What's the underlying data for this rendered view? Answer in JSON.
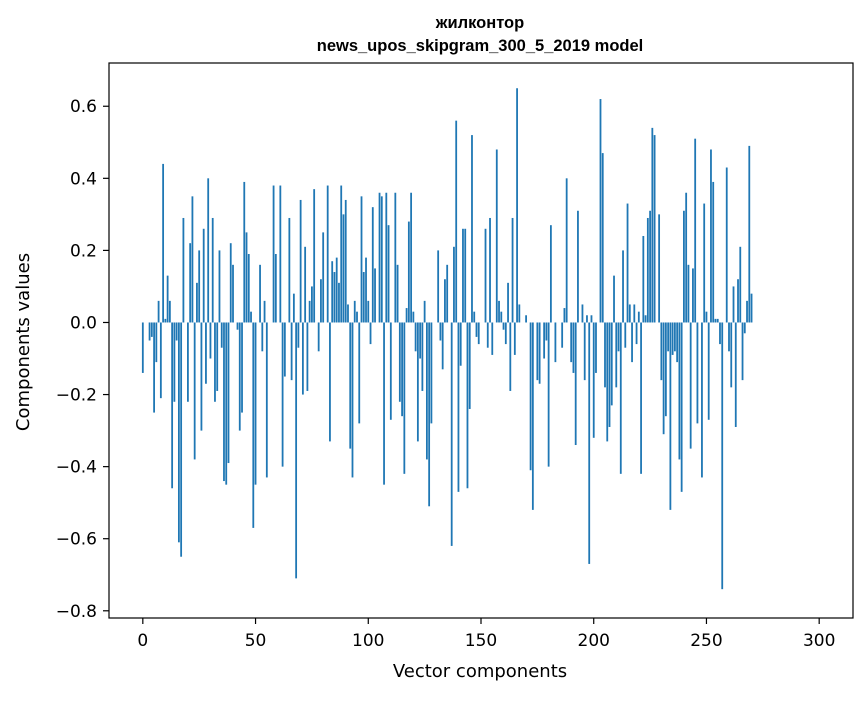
{
  "chart_data": {
    "type": "bar",
    "title_line1": "жилконтор",
    "title_line2": "news_upos_skipgram_300_5_2019 model",
    "xlabel": "Vector components",
    "ylabel": "Components values",
    "xlim": [
      -15,
      315
    ],
    "ylim": [
      -0.82,
      0.72
    ],
    "xticks": [
      0,
      50,
      100,
      150,
      200,
      250,
      300
    ],
    "xtick_labels": [
      "0",
      "50",
      "100",
      "150",
      "200",
      "250",
      "300"
    ],
    "yticks": [
      -0.8,
      -0.6,
      -0.4,
      -0.2,
      0.0,
      0.2,
      0.4,
      0.6
    ],
    "ytick_labels": [
      "−0.8",
      "−0.6",
      "−0.4",
      "−0.2",
      "0.0",
      "0.2",
      "0.4",
      "0.6"
    ],
    "bar_color": "#1f77b4",
    "values": [
      -0.14,
      0.0,
      0.0,
      -0.05,
      -0.04,
      -0.25,
      -0.11,
      0.06,
      -0.21,
      0.44,
      0.01,
      0.13,
      0.06,
      -0.46,
      -0.22,
      -0.05,
      -0.61,
      -0.65,
      0.29,
      0.0,
      -0.22,
      0.22,
      0.35,
      -0.38,
      0.11,
      0.2,
      -0.3,
      0.26,
      -0.17,
      0.4,
      -0.1,
      0.29,
      -0.22,
      -0.19,
      0.2,
      -0.07,
      -0.44,
      -0.45,
      -0.39,
      0.22,
      0.16,
      0.0,
      -0.02,
      -0.3,
      -0.25,
      0.39,
      0.25,
      0.19,
      0.03,
      -0.57,
      -0.45,
      0.0,
      0.16,
      -0.08,
      0.06,
      -0.43,
      0.0,
      0.0,
      0.38,
      0.19,
      0.0,
      0.38,
      -0.4,
      -0.15,
      0.0,
      0.29,
      -0.16,
      0.08,
      -0.71,
      -0.07,
      0.34,
      -0.2,
      0.21,
      -0.19,
      0.06,
      0.1,
      0.37,
      0.0,
      -0.08,
      0.12,
      0.25,
      0.0,
      0.38,
      -0.33,
      0.17,
      0.14,
      0.18,
      0.11,
      0.38,
      0.3,
      0.34,
      0.05,
      -0.35,
      -0.43,
      0.06,
      0.03,
      -0.28,
      0.35,
      0.14,
      0.18,
      0.06,
      -0.06,
      0.32,
      0.15,
      0.0,
      0.36,
      0.35,
      -0.45,
      0.36,
      0.27,
      -0.27,
      0.0,
      0.36,
      0.16,
      -0.22,
      -0.26,
      -0.42,
      0.04,
      0.28,
      0.36,
      0.03,
      -0.08,
      -0.33,
      -0.1,
      -0.19,
      0.06,
      -0.38,
      -0.51,
      -0.28,
      0.0,
      0.0,
      0.2,
      -0.05,
      -0.13,
      0.12,
      0.16,
      0.0,
      -0.62,
      0.21,
      0.56,
      -0.47,
      -0.12,
      0.26,
      0.26,
      -0.46,
      -0.24,
      0.52,
      0.03,
      -0.04,
      -0.06,
      0.0,
      0.0,
      0.26,
      -0.07,
      0.29,
      -0.09,
      0.0,
      0.48,
      0.06,
      0.03,
      -0.02,
      -0.06,
      0.11,
      -0.19,
      0.29,
      -0.09,
      0.65,
      0.05,
      0.0,
      0.0,
      0.02,
      0.0,
      -0.41,
      -0.52,
      0.0,
      -0.16,
      -0.17,
      0.0,
      -0.1,
      -0.05,
      -0.4,
      0.27,
      0.0,
      -0.11,
      0.0,
      0.0,
      -0.07,
      0.04,
      0.4,
      0.0,
      -0.11,
      -0.14,
      -0.34,
      0.31,
      0.0,
      0.05,
      -0.16,
      0.02,
      -0.67,
      0.02,
      -0.32,
      -0.14,
      0.0,
      0.62,
      0.47,
      -0.18,
      -0.33,
      -0.29,
      -0.23,
      0.13,
      -0.18,
      -0.08,
      -0.42,
      0.2,
      -0.07,
      0.33,
      0.05,
      -0.11,
      0.05,
      -0.06,
      0.03,
      -0.42,
      0.24,
      0.02,
      0.29,
      0.31,
      0.54,
      0.52,
      0.0,
      0.3,
      -0.16,
      -0.31,
      -0.26,
      -0.08,
      -0.52,
      -0.09,
      -0.08,
      -0.11,
      -0.38,
      -0.47,
      0.31,
      0.36,
      0.16,
      -0.35,
      0.15,
      0.51,
      -0.28,
      0.0,
      -0.43,
      0.33,
      0.03,
      -0.27,
      0.48,
      0.39,
      0.01,
      0.01,
      -0.06,
      -0.74,
      0.0,
      0.43,
      -0.08,
      -0.18,
      0.1,
      -0.29,
      0.12,
      0.21,
      -0.16,
      -0.03,
      0.06,
      0.49,
      0.08
    ]
  }
}
